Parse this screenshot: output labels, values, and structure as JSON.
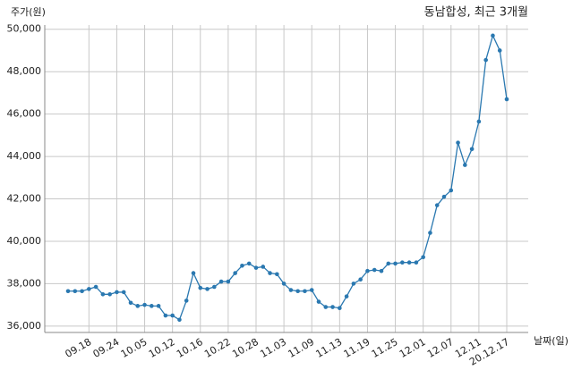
{
  "chart_data": {
    "type": "line",
    "title": "동남합성, 최근 3개월",
    "y_label": "주가(원)",
    "x_label": "날짜(일)",
    "categories": [
      null,
      null,
      null,
      "09.18",
      null,
      null,
      null,
      "09.24",
      null,
      null,
      null,
      "10.05",
      null,
      null,
      null,
      "10.12",
      null,
      null,
      null,
      "10.16",
      null,
      null,
      null,
      "10.22",
      null,
      null,
      null,
      "10.28",
      null,
      null,
      null,
      "11.03",
      null,
      null,
      null,
      "11.09",
      null,
      null,
      null,
      "11.13",
      null,
      null,
      null,
      "11.19",
      null,
      null,
      null,
      "11.25",
      null,
      null,
      null,
      "12.01",
      null,
      null,
      null,
      "12.07",
      null,
      null,
      null,
      "12.11",
      null,
      null,
      null,
      "20.12.17"
    ],
    "series": [
      {
        "name": "주가",
        "color": "#2a78b0",
        "values": [
          37650,
          37650,
          37650,
          37750,
          37850,
          37500,
          37500,
          37600,
          37600,
          37100,
          36950,
          37000,
          36950,
          36950,
          36500,
          36500,
          36300,
          37200,
          38500,
          37800,
          37750,
          37850,
          38100,
          38100,
          38500,
          38850,
          38950,
          38750,
          38800,
          38500,
          38450,
          38000,
          37700,
          37650,
          37650,
          37700,
          37150,
          36900,
          36900,
          36850,
          37400,
          38000,
          38200,
          38600,
          38650,
          38600,
          38950,
          38950,
          39000,
          39000,
          39000,
          39250,
          40400,
          41700,
          42100,
          42400,
          44650,
          43600,
          44350,
          45650,
          48550,
          49700,
          49000,
          46700
        ]
      }
    ],
    "ylim": [
      35700,
      50200
    ],
    "yticks": [
      {
        "value": 36000,
        "label": "36,000"
      },
      {
        "value": 38000,
        "label": "38,000"
      },
      {
        "value": 40000,
        "label": "40,000"
      },
      {
        "value": 42000,
        "label": "42,000"
      },
      {
        "value": 44000,
        "label": "44,000"
      },
      {
        "value": 46000,
        "label": "46,000"
      },
      {
        "value": 48000,
        "label": "48,000"
      },
      {
        "value": 50000,
        "label": "50,000"
      }
    ],
    "grid": true
  }
}
